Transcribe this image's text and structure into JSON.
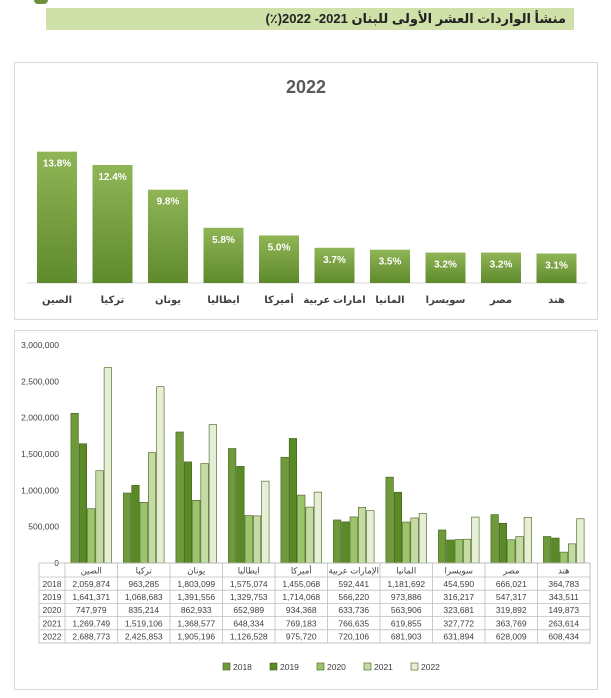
{
  "header": {
    "title": "منشأ الواردات العشر الأولى للبنان 2021- 2022(٪)"
  },
  "colors": {
    "title_band": "#cfe0a8",
    "bar_top": "#8fb556",
    "bar_bottom": "#5f8a2c",
    "series": [
      "#6f9a3a",
      "#5a8a26",
      "#9cc46b",
      "#c6dba4",
      "#e6efd6"
    ]
  },
  "chart_data": [
    {
      "type": "bar",
      "title": "2022",
      "categories": [
        "الصين",
        "تركيا",
        "يونان",
        "ايطاليا",
        "أميركا",
        "امارات عربية",
        "المانيا",
        "سويسرا",
        "مصر",
        "هند"
      ],
      "values": [
        13.8,
        12.4,
        9.8,
        5.8,
        5.0,
        3.7,
        3.5,
        3.2,
        3.2,
        3.1
      ],
      "value_labels": [
        "13.8%",
        "12.4%",
        "9.8%",
        "5.8%",
        "5.0%",
        "3.7%",
        "3.5%",
        "3.2%",
        "3.2%",
        "3.1%"
      ],
      "ylim": [
        0,
        14.5
      ]
    },
    {
      "type": "bar",
      "categories": [
        "الصين",
        "تركيا",
        "يونان",
        "ايطاليا",
        "أميركا",
        "الإمارات عربية",
        "المانيا",
        "سويسرا",
        "مصر",
        "هند"
      ],
      "series": [
        {
          "name": "2018",
          "values": [
            2059874,
            963285,
            1803099,
            1575074,
            1455068,
            592441,
            1181692,
            454590,
            666021,
            364783
          ],
          "labels": [
            "2,059,874",
            "963,285",
            "1,803,099",
            "1,575,074",
            "1,455,068",
            "592,441",
            "1,181,692",
            "454,590",
            "666,021",
            "364,783"
          ]
        },
        {
          "name": "2019",
          "values": [
            1641371,
            1068683,
            1391556,
            1329753,
            1714068,
            566220,
            973886,
            316217,
            547317,
            343511
          ],
          "labels": [
            "1,641,371",
            "1,068,683",
            "1,391,556",
            "1,329,753",
            "1,714,068",
            "566,220",
            "973,886",
            "316,217",
            "547,317",
            "343,511"
          ]
        },
        {
          "name": "2020",
          "values": [
            747979,
            835214,
            862933,
            652989,
            934368,
            633736,
            563906,
            323681,
            319892,
            149873
          ],
          "labels": [
            "747,979",
            "835,214",
            "862,933",
            "652,989",
            "934,368",
            "633,736",
            "563,906",
            "323,681",
            "319,892",
            "149,873"
          ]
        },
        {
          "name": "2021",
          "values": [
            1269749,
            1519106,
            1368577,
            648334,
            769183,
            766635,
            619855,
            327772,
            363769,
            263614
          ],
          "labels": [
            "1,269,749",
            "1,519,106",
            "1,368,577",
            "648,334",
            "769,183",
            "766,635",
            "619,855",
            "327,772",
            "363,769",
            "263,614"
          ]
        },
        {
          "name": "2022",
          "values": [
            2688773,
            2425853,
            1905196,
            1126528,
            975720,
            720106,
            681903,
            631894,
            628009,
            608434
          ],
          "labels": [
            "2,688,773",
            "2,425,853",
            "1,905,196",
            "1,126,528",
            "975,720",
            "720,106",
            "681,903",
            "631,894",
            "628,009",
            "608,434"
          ]
        }
      ],
      "ylim": [
        0,
        3000000
      ],
      "yticks": [
        0,
        500000,
        1000000,
        1500000,
        2000000,
        2500000,
        3000000
      ],
      "ytick_labels": [
        "0",
        "500,000",
        "1,000,000",
        "1,500,000",
        "2,000,000",
        "2,500,000",
        "3,000,000"
      ],
      "grid": false,
      "legend_position": "bottom",
      "data_table": true
    }
  ]
}
